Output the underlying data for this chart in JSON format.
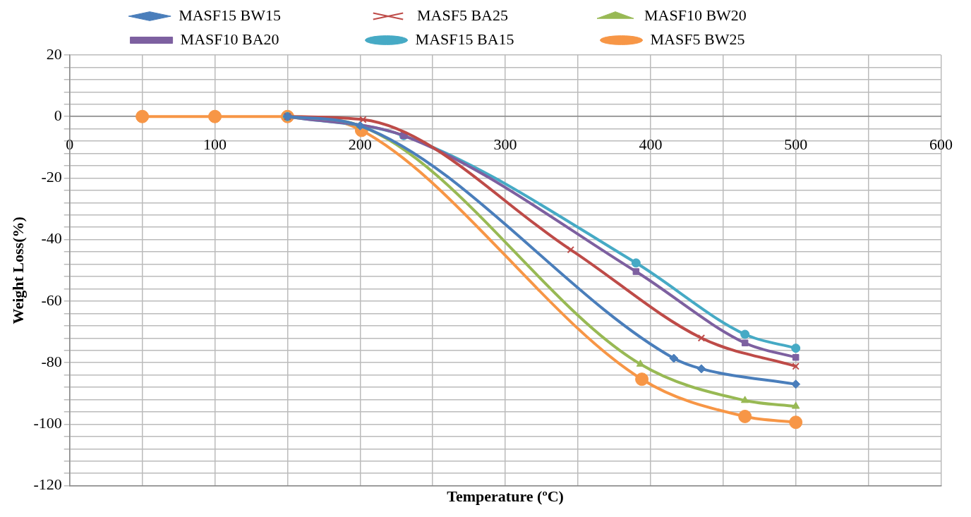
{
  "chart_data": {
    "type": "line",
    "xlabel": "Temperature (ºC)",
    "ylabel": "Weight Loss(%)",
    "xlim": [
      0,
      600
    ],
    "ylim": [
      -120,
      20
    ],
    "xticks": [
      0,
      {
        "value": 50,
        "label": null
      },
      100,
      {
        "value": 150,
        "label": null
      },
      200,
      {
        "value": 250,
        "label": null
      },
      300,
      {
        "value": 350,
        "label": null
      },
      400,
      {
        "value": 450,
        "label": null
      },
      500,
      {
        "value": 550,
        "label": null
      },
      600
    ],
    "yticks": [
      -120,
      {
        "value": -116,
        "label": null
      },
      {
        "value": -112,
        "label": null
      },
      {
        "value": -108,
        "label": null
      },
      {
        "value": -104,
        "label": null
      },
      -100,
      {
        "value": -96,
        "label": null
      },
      {
        "value": -92,
        "label": null
      },
      {
        "value": -88,
        "label": null
      },
      {
        "value": -84,
        "label": null
      },
      -80,
      {
        "value": -76,
        "label": null
      },
      {
        "value": -72,
        "label": null
      },
      {
        "value": -68,
        "label": null
      },
      {
        "value": -64,
        "label": null
      },
      -60,
      {
        "value": -56,
        "label": null
      },
      {
        "value": -52,
        "label": null
      },
      {
        "value": -48,
        "label": null
      },
      {
        "value": -44,
        "label": null
      },
      -40,
      {
        "value": -36,
        "label": null
      },
      {
        "value": -32,
        "label": null
      },
      {
        "value": -28,
        "label": null
      },
      {
        "value": -24,
        "label": null
      },
      -20,
      {
        "value": -16,
        "label": null
      },
      {
        "value": -12,
        "label": null
      },
      {
        "value": -8,
        "label": null
      },
      {
        "value": -4,
        "label": null
      },
      0,
      {
        "value": 4,
        "label": null
      },
      {
        "value": 8,
        "label": null
      },
      {
        "value": 12,
        "label": null
      },
      {
        "value": 16,
        "label": null
      },
      20
    ],
    "grid": true,
    "legend": "top",
    "line_style": "solid",
    "series": [
      {
        "name": "MASF15 BW15",
        "color": "#4a7ebb",
        "marker": "diamond",
        "x": [
          150,
          200,
          416,
          435,
          500
        ],
        "values": [
          0,
          -3,
          -78.6,
          -82,
          -87
        ]
      },
      {
        "name": "MASF5 BA25",
        "color": "#be4b48",
        "marker": "cross",
        "x": [
          150,
          202,
          345,
          435,
          500
        ],
        "values": [
          0,
          -1,
          -43.3,
          -72,
          -81.2
        ]
      },
      {
        "name": "MASF10 BW20",
        "color": "#98b954",
        "marker": "triangle",
        "x": [
          150,
          200,
          393,
          465,
          500
        ],
        "values": [
          0,
          -3,
          -80.5,
          -92.3,
          -94.2
        ]
      },
      {
        "name": "MASF10 BA20",
        "color": "#7d60a0",
        "marker": "square",
        "x": [
          150,
          230,
          390,
          465,
          500
        ],
        "values": [
          0,
          -6.2,
          -50.4,
          -73.6,
          -78.3
        ]
      },
      {
        "name": "MASF15 BA15",
        "color": "#46aac5",
        "marker": "circle",
        "x": [
          150,
          230,
          390,
          465,
          500
        ],
        "values": [
          0,
          -6.2,
          -47.6,
          -70.8,
          -75.3
        ]
      },
      {
        "name": "MASF5 BW25",
        "color": "#f79646",
        "marker": "circle",
        "x": [
          50,
          100,
          150,
          201,
          394,
          465,
          500
        ],
        "values": [
          0,
          0,
          0,
          -4.5,
          -85.4,
          -97.5,
          -99.4
        ]
      }
    ]
  }
}
